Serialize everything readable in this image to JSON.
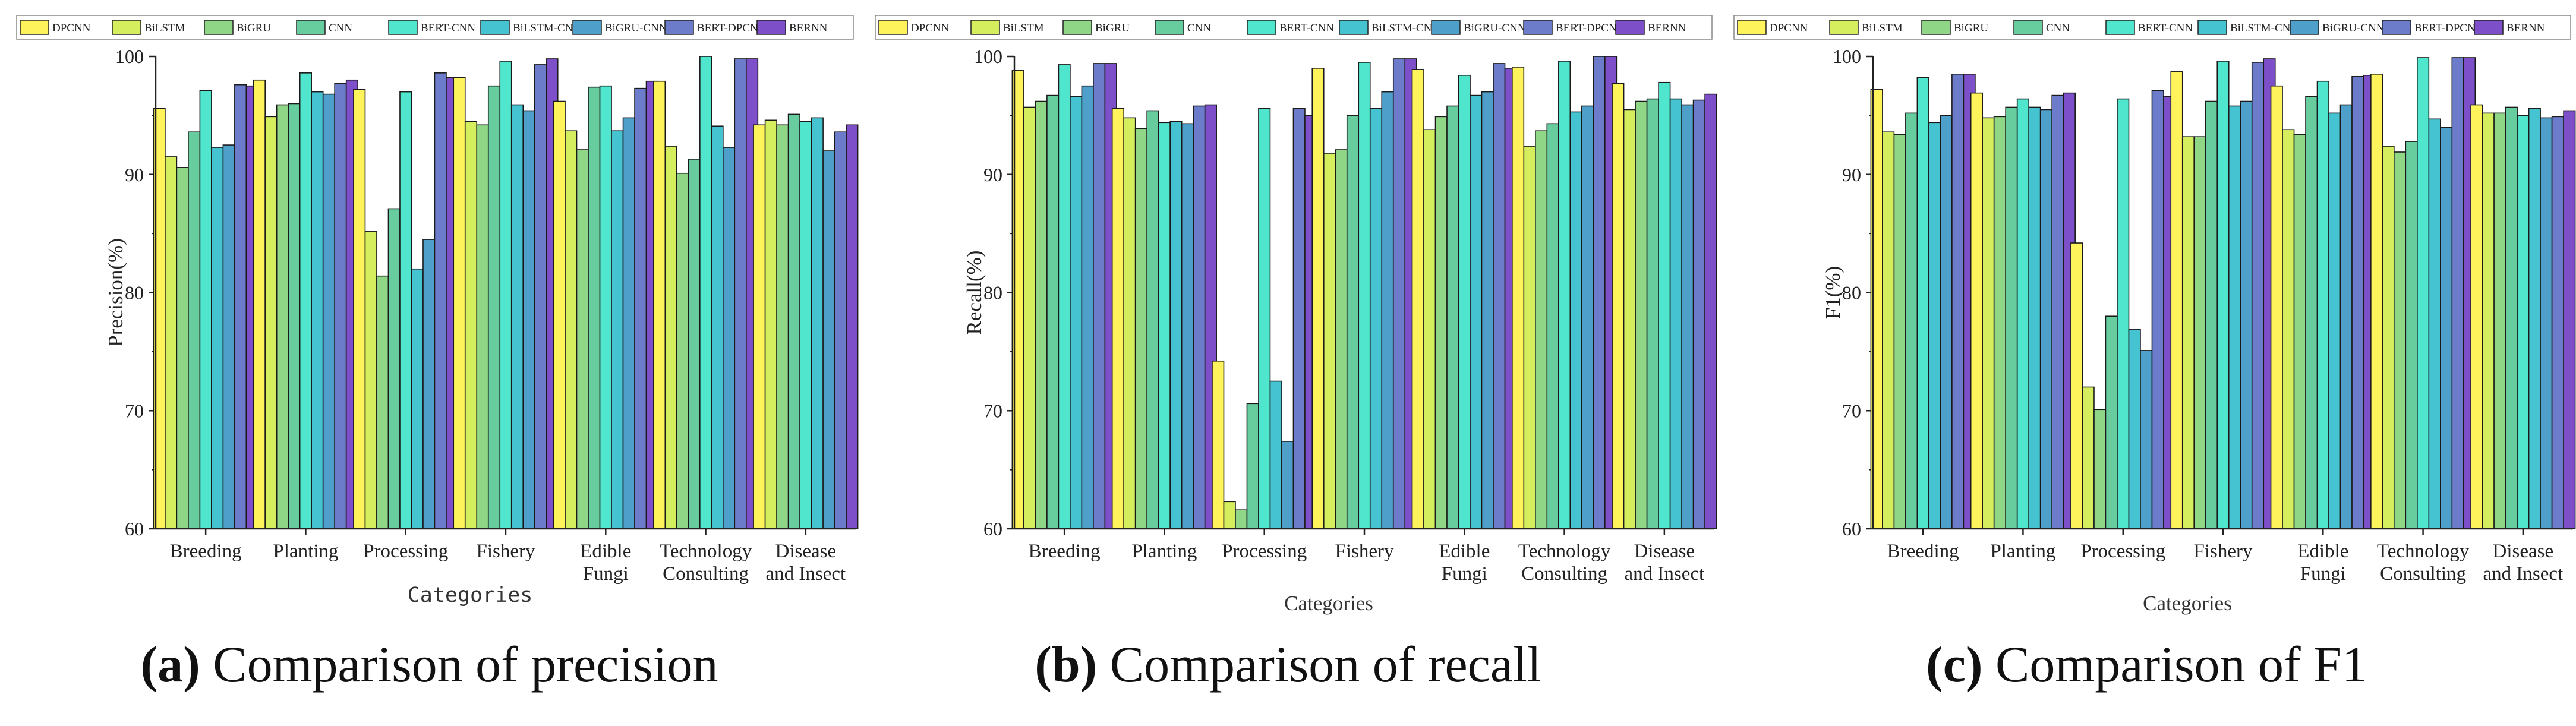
{
  "legend_series": [
    "DPCNN",
    "BiLSTM",
    "BiGRU",
    "CNN",
    "BERT-CNN",
    "BiLSTM-CNN",
    "BiGRU-CNN",
    "BERT-DPCNN",
    "BERNN"
  ],
  "colors": [
    "#FFF35C",
    "#D4EE5E",
    "#8FD787",
    "#67CD9F",
    "#4FE6CD",
    "#45C3D0",
    "#4F9FCB",
    "#6C7CCA",
    "#7D4FC9"
  ],
  "captions": [
    {
      "letter": "(a)",
      "text": " Comparison of precision"
    },
    {
      "letter": "(b)",
      "text": " Comparison of recall"
    },
    {
      "letter": "(c)",
      "text": " Comparison of F1"
    }
  ],
  "chart_data": [
    {
      "type": "bar",
      "title": "Comparison of precision",
      "xlabel": "Categories",
      "ylabel": "Precision(%)",
      "ylim": [
        60,
        100
      ],
      "yticks": [
        "60",
        "70",
        "80",
        "90",
        "100"
      ],
      "categories": [
        [
          "Breeding"
        ],
        [
          "Planting"
        ],
        [
          "Processing"
        ],
        [
          "Fishery"
        ],
        [
          "Edible",
          "Fungi"
        ],
        [
          "Technology",
          "Consulting"
        ],
        [
          "Disease",
          "and Insect"
        ]
      ],
      "series": [
        {
          "name": "DPCNN",
          "values": [
            95.6,
            98.0,
            97.2,
            98.2,
            96.2,
            97.9,
            94.2
          ]
        },
        {
          "name": "BiLSTM",
          "values": [
            91.5,
            94.9,
            85.2,
            94.5,
            93.7,
            92.4,
            94.6
          ]
        },
        {
          "name": "BiGRU",
          "values": [
            90.6,
            95.9,
            81.4,
            94.2,
            92.1,
            90.1,
            94.2
          ]
        },
        {
          "name": "CNN",
          "values": [
            93.6,
            96.0,
            87.1,
            97.5,
            97.4,
            91.3,
            95.1
          ]
        },
        {
          "name": "BERT-CNN",
          "values": [
            97.1,
            98.6,
            97.0,
            99.6,
            97.5,
            100.0,
            94.5
          ]
        },
        {
          "name": "BiLSTM-CNN",
          "values": [
            92.3,
            97.0,
            82.0,
            95.9,
            93.7,
            94.1,
            94.8
          ]
        },
        {
          "name": "BiGRU-CNN",
          "values": [
            92.5,
            96.8,
            84.5,
            95.4,
            94.8,
            92.3,
            92.0
          ]
        },
        {
          "name": "BERT-DPCNN",
          "values": [
            97.6,
            97.7,
            98.6,
            99.3,
            97.3,
            99.8,
            93.6
          ]
        },
        {
          "name": "BERNN",
          "values": [
            97.5,
            98.0,
            98.2,
            99.8,
            97.9,
            99.8,
            94.2
          ]
        }
      ]
    },
    {
      "type": "bar",
      "title": "Comparison of recall",
      "xlabel": "Categories",
      "ylabel": "Recall(%)",
      "ylim": [
        60,
        100
      ],
      "yticks": [
        "60",
        "70",
        "80",
        "90",
        "100"
      ],
      "categories": [
        [
          "Breeding"
        ],
        [
          "Planting"
        ],
        [
          "Processing"
        ],
        [
          "Fishery"
        ],
        [
          "Edible",
          "Fungi"
        ],
        [
          "Technology",
          "Consulting"
        ],
        [
          "Disease",
          "and Insect"
        ]
      ],
      "series": [
        {
          "name": "DPCNN",
          "values": [
            98.8,
            95.6,
            74.2,
            99.0,
            98.9,
            99.1,
            97.7
          ]
        },
        {
          "name": "BiLSTM",
          "values": [
            95.7,
            94.8,
            62.3,
            91.8,
            93.8,
            92.4,
            95.5
          ]
        },
        {
          "name": "BiGRU",
          "values": [
            96.2,
            93.9,
            61.6,
            92.1,
            94.9,
            93.7,
            96.2
          ]
        },
        {
          "name": "CNN",
          "values": [
            96.7,
            95.4,
            70.6,
            95.0,
            95.8,
            94.3,
            96.4
          ]
        },
        {
          "name": "BERT-CNN",
          "values": [
            99.3,
            94.4,
            95.6,
            99.5,
            98.4,
            99.6,
            97.8
          ]
        },
        {
          "name": "BiLSTM-CNN",
          "values": [
            96.6,
            94.5,
            72.5,
            95.6,
            96.7,
            95.3,
            96.4
          ]
        },
        {
          "name": "BiGRU-CNN",
          "values": [
            97.5,
            94.3,
            67.4,
            97.0,
            97.0,
            95.8,
            95.9
          ]
        },
        {
          "name": "BERT-DPCNN",
          "values": [
            99.4,
            95.8,
            95.6,
            99.8,
            99.4,
            100.0,
            96.3
          ]
        },
        {
          "name": "BERNN",
          "values": [
            99.4,
            95.9,
            95.0,
            99.8,
            99.0,
            100.0,
            96.8
          ]
        }
      ]
    },
    {
      "type": "bar",
      "title": "Comparison of F1",
      "xlabel": "Categories",
      "ylabel": "F1(%)",
      "ylim": [
        60,
        100
      ],
      "yticks": [
        "60",
        "70",
        "80",
        "90",
        "100"
      ],
      "categories": [
        [
          "Breeding"
        ],
        [
          "Planting"
        ],
        [
          "Processing"
        ],
        [
          "Fishery"
        ],
        [
          "Edible",
          "Fungi"
        ],
        [
          "Technology",
          "Consulting"
        ],
        [
          "Disease",
          "and Insect"
        ]
      ],
      "series": [
        {
          "name": "DPCNN",
          "values": [
            97.2,
            96.9,
            84.2,
            98.7,
            97.5,
            98.5,
            95.9
          ]
        },
        {
          "name": "BiLSTM",
          "values": [
            93.6,
            94.8,
            72.0,
            93.2,
            93.8,
            92.4,
            95.2
          ]
        },
        {
          "name": "BiGRU",
          "values": [
            93.4,
            94.9,
            70.1,
            93.2,
            93.4,
            91.9,
            95.2
          ]
        },
        {
          "name": "CNN",
          "values": [
            95.2,
            95.7,
            78.0,
            96.2,
            96.6,
            92.8,
            95.7
          ]
        },
        {
          "name": "BERT-CNN",
          "values": [
            98.2,
            96.4,
            96.4,
            99.6,
            97.9,
            99.9,
            95.0
          ]
        },
        {
          "name": "BiLSTM-CNN",
          "values": [
            94.4,
            95.7,
            76.9,
            95.8,
            95.2,
            94.7,
            95.6
          ]
        },
        {
          "name": "BiGRU-CNN",
          "values": [
            95.0,
            95.5,
            75.1,
            96.2,
            95.9,
            94.0,
            94.8
          ]
        },
        {
          "name": "BERT-DPCNN",
          "values": [
            98.5,
            96.7,
            97.1,
            99.5,
            98.3,
            99.9,
            94.9
          ]
        },
        {
          "name": "BERNN",
          "values": [
            98.5,
            96.9,
            96.6,
            99.8,
            98.4,
            99.9,
            95.4
          ]
        }
      ]
    }
  ]
}
